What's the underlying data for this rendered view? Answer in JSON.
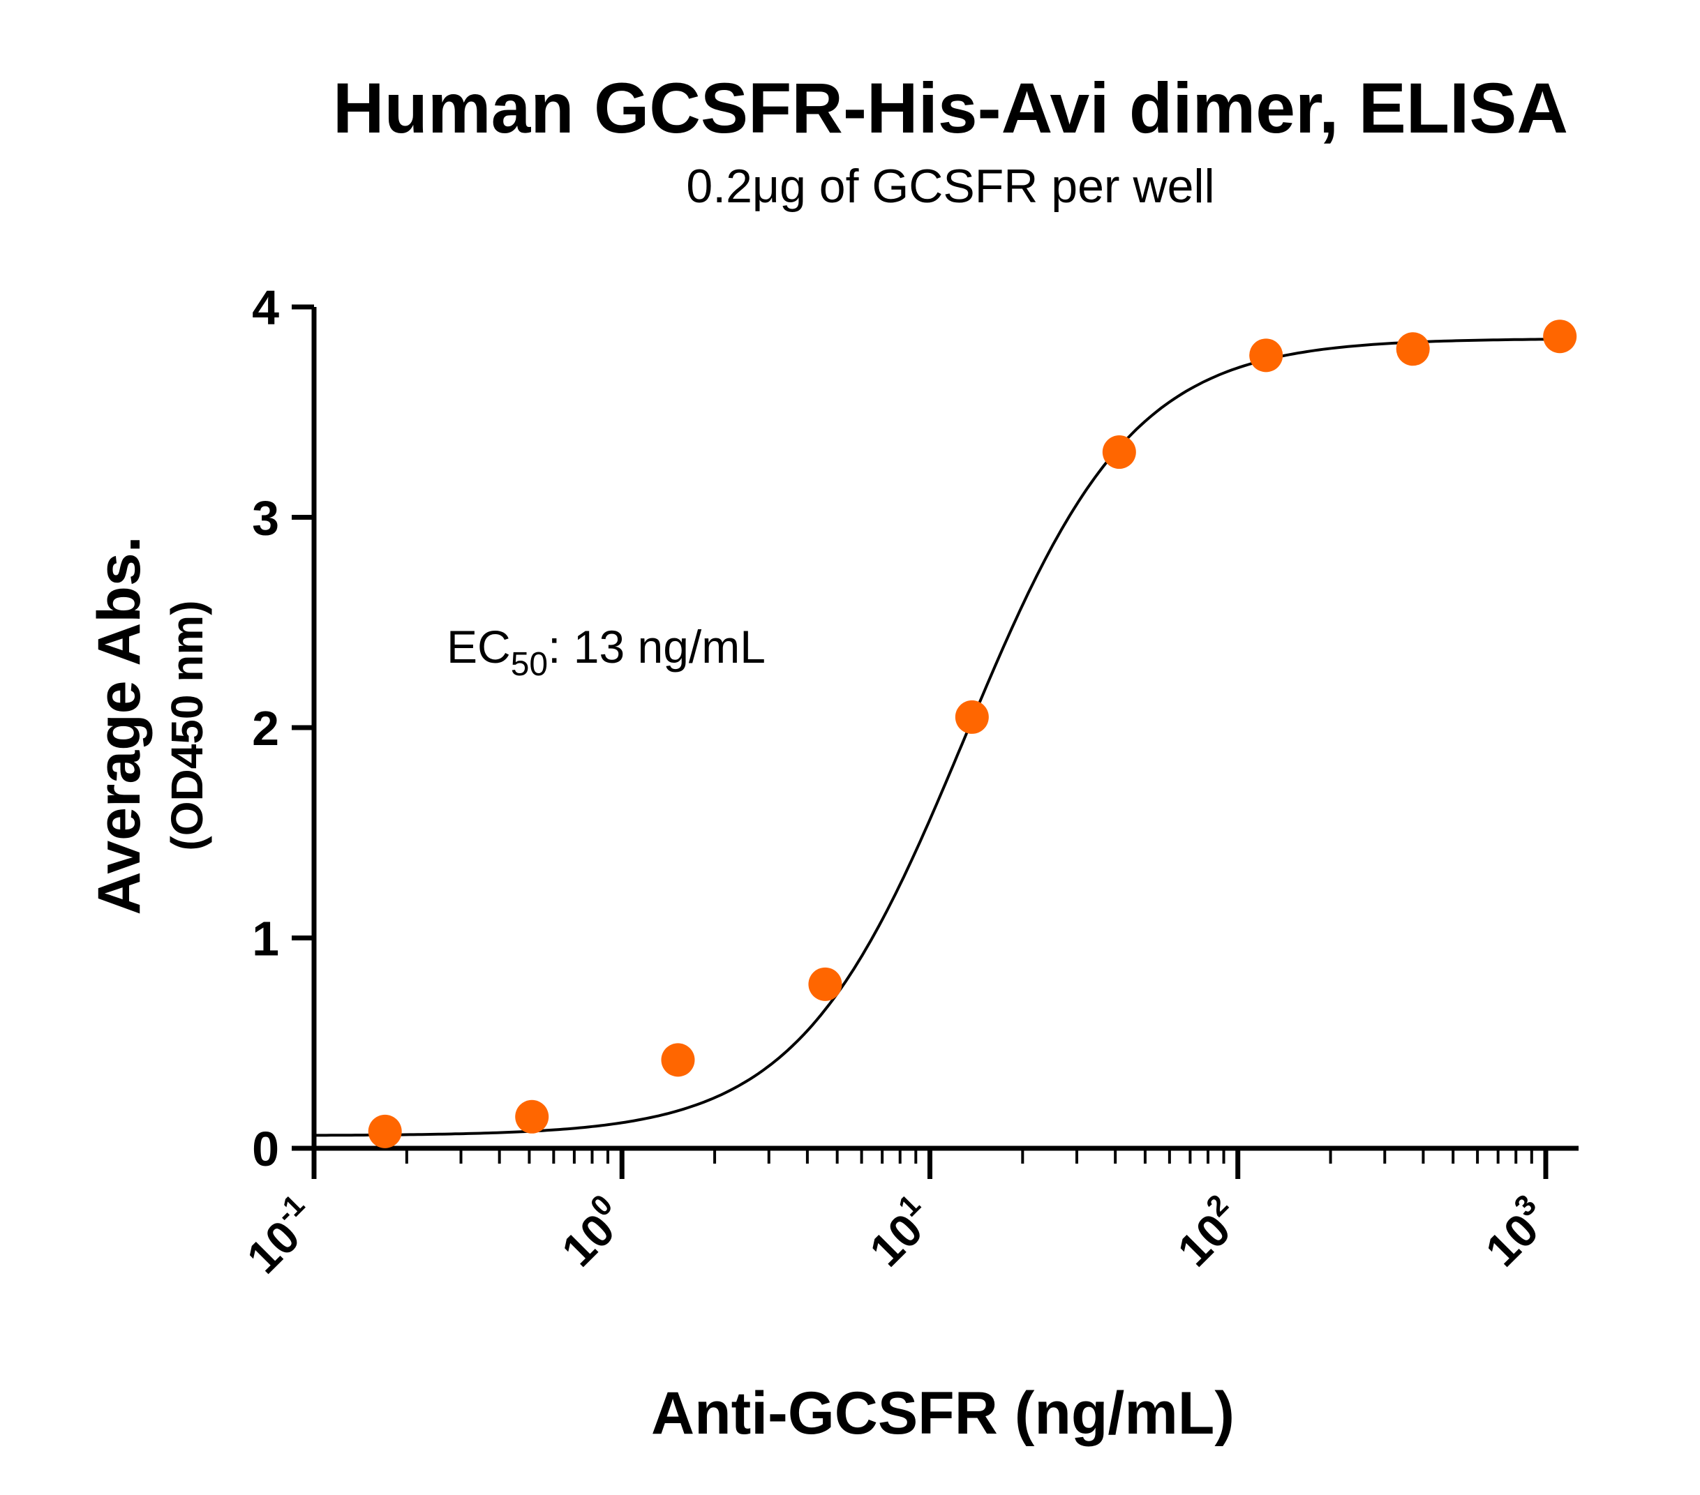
{
  "chart_data": {
    "type": "scatter",
    "title": "Human GCSFR-His-Avi dimer, ELISA",
    "subtitle": "0.2μg of GCSFR per well",
    "xlabel": "Anti-GCSFR (ng/mL)",
    "ylabel": "Average Abs.",
    "ylabel_sub": "(OD450 nm)",
    "x_scale": "log",
    "xlim": [
      0.1,
      1000
    ],
    "ylim": [
      0,
      4
    ],
    "x_ticks": [
      {
        "base": "10",
        "exp": "-1"
      },
      {
        "base": "10",
        "exp": "0"
      },
      {
        "base": "10",
        "exp": "1"
      },
      {
        "base": "10",
        "exp": "2"
      },
      {
        "base": "10",
        "exp": "3"
      }
    ],
    "y_ticks": [
      "0",
      "1",
      "2",
      "3",
      "4"
    ],
    "grid": false,
    "annotation": {
      "prefix": "EC",
      "sub": "50",
      "suffix": ": 13 ng/mL"
    },
    "point_color": "#FF6600",
    "curve_color": "#000000",
    "series": [
      {
        "x": [
          0.17,
          0.51,
          1.52,
          4.57,
          13.7,
          41.2,
          123.5,
          370.4,
          1111.1
        ],
        "y": [
          0.08,
          0.15,
          0.42,
          0.78,
          2.05,
          3.31,
          3.77,
          3.8,
          3.86
        ]
      }
    ],
    "fit_curve": {
      "bottom": 0.06,
      "top": 3.85,
      "ec50": 13,
      "hill": 1.6
    }
  }
}
